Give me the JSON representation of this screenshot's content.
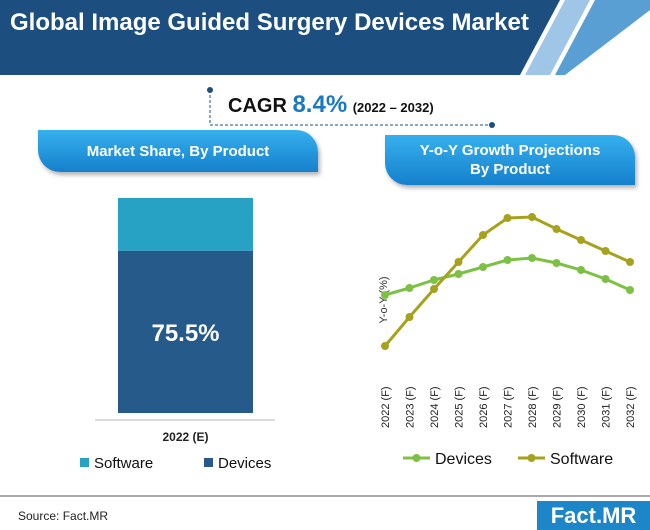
{
  "header": {
    "title": "Global Image Guided Surgery Devices Market"
  },
  "cagr": {
    "label": "CAGR",
    "value": "8.4%",
    "period": "(2022 – 2032)"
  },
  "charts": [
    {
      "type": "stacked_bar",
      "title": "Market Share, By Product",
      "categories": [
        "2022 (E)"
      ],
      "series": [
        {
          "name": "Software",
          "color": "#27a1c4",
          "values": [
            24.5
          ]
        },
        {
          "name": "Devices",
          "color": "#255a8a",
          "values": [
            75.5
          ],
          "value_labels": [
            "75.5%"
          ]
        }
      ]
    },
    {
      "type": "line",
      "title": "Y-o-Y Growth Projections By Product",
      "y_label": "Y-o-Y (%)",
      "categories": [
        "2022 (F)",
        "2023 (F)",
        "2024 (F)",
        "2025 (F)",
        "2026 (F)",
        "2027 (F)",
        "2028 (F)",
        "2029 (F)",
        "2030 (F)",
        "2031 (F)",
        "2032 (F)"
      ],
      "ylim": [
        0,
        10
      ],
      "series": [
        {
          "name": "Devices",
          "color": "#7cc143",
          "values": [
            4.25,
            4.6,
            5.0,
            5.3,
            5.65,
            6.0,
            6.1,
            5.85,
            5.5,
            5.05,
            4.5
          ]
        },
        {
          "name": "Software",
          "color": "#a7a21e",
          "values": [
            1.7,
            3.15,
            4.55,
            5.9,
            7.25,
            8.1,
            8.15,
            7.55,
            7.0,
            6.45,
            5.9
          ]
        }
      ]
    }
  ],
  "footer": {
    "source": "Source: Fact.MR",
    "logo": "Fact.MR"
  }
}
